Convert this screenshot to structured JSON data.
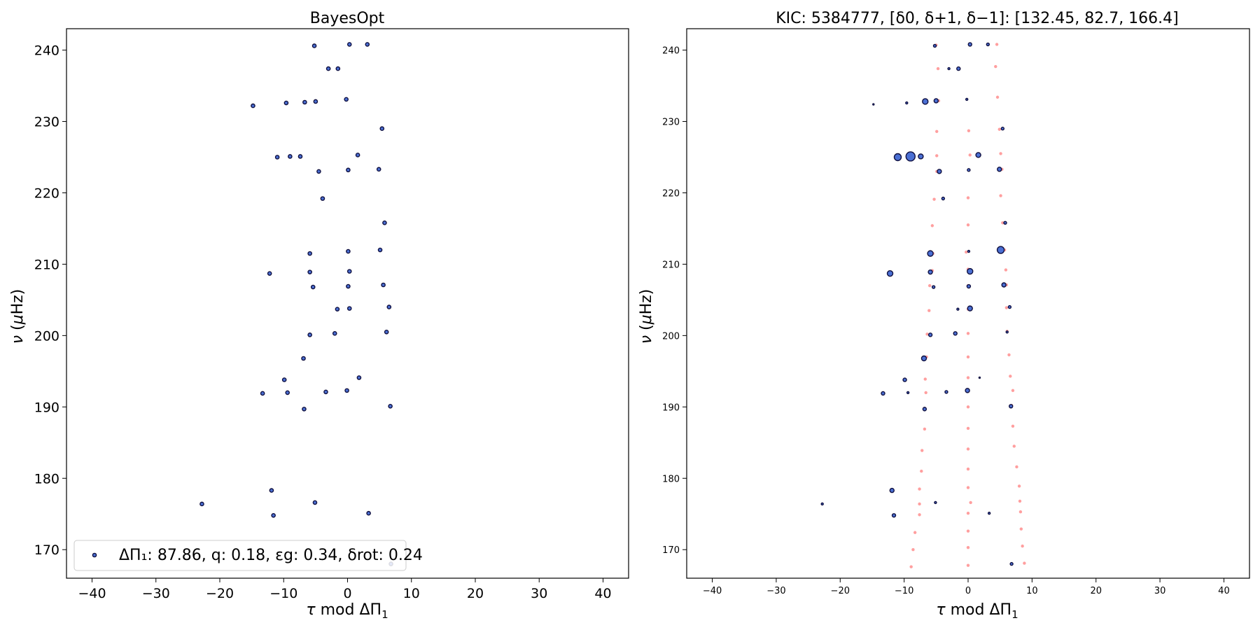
{
  "chart_data": [
    {
      "type": "scatter",
      "title": "BayesOpt",
      "xlabel": "τ mod ΔΠ₁",
      "ylabel": "ν (μHz)",
      "xlim": [
        -44,
        44
      ],
      "ylim": [
        166,
        243
      ],
      "xticks": [
        -40,
        -30,
        -20,
        -10,
        0,
        10,
        20,
        30,
        40
      ],
      "yticks": [
        170,
        180,
        190,
        200,
        210,
        220,
        230,
        240
      ],
      "grid": false,
      "legend": {
        "location": "lower-left",
        "entries": [
          {
            "marker": "circle",
            "text": "ΔΠ₁: 87.86, q: 0.18, εg: 0.34, δrot: 0.24"
          }
        ]
      },
      "series": [
        {
          "color": "#4a6fd3",
          "edge_color": "#101040",
          "points": [
            [
              -5.2,
              240.6
            ],
            [
              0.3,
              240.8
            ],
            [
              3.1,
              240.8
            ],
            [
              -3.0,
              237.4
            ],
            [
              -1.5,
              237.4
            ],
            [
              -14.8,
              232.2
            ],
            [
              -9.6,
              232.6
            ],
            [
              -6.7,
              232.7
            ],
            [
              -5.0,
              232.8
            ],
            [
              -0.2,
              233.1
            ],
            [
              5.4,
              229.0
            ],
            [
              -11.0,
              225.0
            ],
            [
              -9.0,
              225.1
            ],
            [
              -7.4,
              225.1
            ],
            [
              1.6,
              225.3
            ],
            [
              -4.5,
              223.0
            ],
            [
              0.1,
              223.2
            ],
            [
              4.9,
              223.3
            ],
            [
              -3.9,
              219.2
            ],
            [
              5.8,
              215.8
            ],
            [
              -5.9,
              211.5
            ],
            [
              0.1,
              211.8
            ],
            [
              5.1,
              212.0
            ],
            [
              -12.2,
              208.7
            ],
            [
              -5.9,
              208.9
            ],
            [
              0.3,
              209.0
            ],
            [
              -5.4,
              206.8
            ],
            [
              0.1,
              206.9
            ],
            [
              5.6,
              207.1
            ],
            [
              -1.6,
              203.7
            ],
            [
              0.3,
              203.8
            ],
            [
              6.5,
              204.0
            ],
            [
              -5.9,
              200.1
            ],
            [
              -2.0,
              200.3
            ],
            [
              6.1,
              200.5
            ],
            [
              -6.9,
              196.8
            ],
            [
              -9.9,
              193.8
            ],
            [
              1.8,
              194.1
            ],
            [
              -13.3,
              191.9
            ],
            [
              -9.4,
              192.0
            ],
            [
              -3.4,
              192.1
            ],
            [
              -0.1,
              192.3
            ],
            [
              -6.8,
              189.7
            ],
            [
              6.7,
              190.1
            ],
            [
              -11.9,
              178.3
            ],
            [
              -22.8,
              176.4
            ],
            [
              -5.1,
              176.6
            ],
            [
              -11.6,
              174.8
            ],
            [
              3.3,
              175.1
            ],
            [
              6.8,
              168.0
            ]
          ]
        }
      ]
    },
    {
      "type": "scatter",
      "title": "KIC: 5384777, [δ0, δ+1, δ−1]: [132.45, 82.7, 166.4]",
      "xlabel": "τ mod ΔΠ₁",
      "ylabel": "ν (μHz)",
      "xlim": [
        -44,
        44
      ],
      "ylim": [
        166,
        243
      ],
      "xticks": [
        -40,
        -30,
        -20,
        -10,
        0,
        10,
        20,
        30,
        40
      ],
      "yticks": [
        170,
        180,
        190,
        200,
        210,
        220,
        230,
        240
      ],
      "grid": false,
      "series": [
        {
          "color": "#4a6fd3",
          "edge_color": "#101040",
          "points": [
            [
              -5.2,
              240.6,
              2
            ],
            [
              0.3,
              240.8,
              2.5
            ],
            [
              3.1,
              240.8,
              2
            ],
            [
              -3.0,
              237.4,
              1.5
            ],
            [
              -1.5,
              237.4,
              2.5
            ],
            [
              -14.8,
              232.4,
              1
            ],
            [
              -9.6,
              232.6,
              1.5
            ],
            [
              -6.7,
              232.8,
              4
            ],
            [
              -5.0,
              232.9,
              3
            ],
            [
              -0.2,
              233.1,
              1.5
            ],
            [
              5.4,
              229.0,
              2
            ],
            [
              -11.0,
              225.0,
              5
            ],
            [
              -9.0,
              225.1,
              6.5
            ],
            [
              -7.4,
              225.1,
              3.5
            ],
            [
              1.6,
              225.3,
              3.5
            ],
            [
              -4.5,
              223.0,
              3
            ],
            [
              0.1,
              223.2,
              2
            ],
            [
              4.9,
              223.3,
              3
            ],
            [
              -3.9,
              219.2,
              2
            ],
            [
              5.8,
              215.8,
              2
            ],
            [
              -5.9,
              211.5,
              4
            ],
            [
              0.1,
              211.8,
              1.5
            ],
            [
              5.1,
              212.0,
              5
            ],
            [
              -12.2,
              208.7,
              4
            ],
            [
              -5.9,
              208.9,
              3
            ],
            [
              0.3,
              209.0,
              4
            ],
            [
              -5.4,
              206.8,
              2
            ],
            [
              0.1,
              206.9,
              2.5
            ],
            [
              5.6,
              207.1,
              3
            ],
            [
              -1.6,
              203.7,
              1.5
            ],
            [
              0.3,
              203.8,
              3.5
            ],
            [
              6.5,
              204.0,
              2
            ],
            [
              -5.9,
              200.1,
              2.5
            ],
            [
              -2.0,
              200.3,
              2.5
            ],
            [
              6.1,
              200.5,
              1.5
            ],
            [
              -6.9,
              196.8,
              3.5
            ],
            [
              -9.9,
              193.8,
              2.5
            ],
            [
              1.8,
              194.1,
              1
            ],
            [
              -13.3,
              191.9,
              2.5
            ],
            [
              -9.4,
              192.0,
              1.5
            ],
            [
              -3.4,
              192.1,
              2
            ],
            [
              -0.1,
              192.3,
              3
            ],
            [
              -6.8,
              189.7,
              2.5
            ],
            [
              6.7,
              190.1,
              2.5
            ],
            [
              -11.9,
              178.3,
              3
            ],
            [
              -22.8,
              176.4,
              1.5
            ],
            [
              -5.1,
              176.6,
              1.5
            ],
            [
              -11.6,
              174.8,
              2.5
            ],
            [
              3.3,
              175.1,
              1.5
            ],
            [
              6.8,
              168.0,
              2
            ]
          ]
        },
        {
          "color": "#ff9f9f",
          "points": [
            [
              -5.0,
              240.7
            ],
            [
              4.5,
              240.8
            ],
            [
              -4.7,
              237.4
            ],
            [
              4.3,
              237.7
            ],
            [
              -4.6,
              232.9
            ],
            [
              4.6,
              233.4
            ],
            [
              -4.9,
              228.6
            ],
            [
              0.1,
              228.7
            ],
            [
              4.9,
              228.9
            ],
            [
              -4.9,
              225.2
            ],
            [
              0.3,
              225.3
            ],
            [
              5.1,
              225.5
            ],
            [
              -4.9,
              223.0
            ],
            [
              5.3,
              223.3
            ],
            [
              -5.3,
              219.1
            ],
            [
              0.0,
              219.3
            ],
            [
              5.1,
              219.6
            ],
            [
              -5.6,
              215.4
            ],
            [
              0.0,
              215.5
            ],
            [
              5.4,
              215.8
            ],
            [
              -5.5,
              211.5
            ],
            [
              -0.3,
              211.7
            ],
            [
              5.7,
              212.0
            ],
            [
              -5.6,
              209.1
            ],
            [
              0.0,
              209.3
            ],
            [
              5.9,
              209.2
            ],
            [
              -6.0,
              207.0
            ],
            [
              0.0,
              207.0
            ],
            [
              6.0,
              207.1
            ],
            [
              -6.1,
              203.5
            ],
            [
              0.0,
              203.7
            ],
            [
              6.0,
              203.9
            ],
            [
              -6.4,
              200.2
            ],
            [
              0.0,
              200.3
            ],
            [
              6.1,
              200.6
            ],
            [
              -6.5,
              197.0
            ],
            [
              0.0,
              197.0
            ],
            [
              6.4,
              197.3
            ],
            [
              -6.7,
              193.9
            ],
            [
              0.0,
              194.1
            ],
            [
              6.6,
              194.3
            ],
            [
              -6.6,
              192.0
            ],
            [
              0.0,
              192.2
            ],
            [
              7.0,
              192.3
            ],
            [
              -6.8,
              189.8
            ],
            [
              0.0,
              190.0
            ],
            [
              6.8,
              190.2
            ],
            [
              -6.8,
              186.9
            ],
            [
              0.0,
              187.0
            ],
            [
              7.0,
              187.3
            ],
            [
              -7.2,
              183.9
            ],
            [
              0.0,
              184.1
            ],
            [
              7.2,
              184.5
            ],
            [
              -7.3,
              181.0
            ],
            [
              0.0,
              181.3
            ],
            [
              7.6,
              181.6
            ],
            [
              -7.6,
              178.5
            ],
            [
              0.0,
              178.7
            ],
            [
              8.0,
              178.9
            ],
            [
              -7.6,
              176.4
            ],
            [
              0.4,
              176.6
            ],
            [
              8.1,
              176.8
            ],
            [
              -7.6,
              174.9
            ],
            [
              0.0,
              175.1
            ],
            [
              8.2,
              175.3
            ],
            [
              -8.3,
              172.4
            ],
            [
              0.0,
              172.6
            ],
            [
              8.3,
              172.9
            ],
            [
              -8.6,
              170.0
            ],
            [
              0.0,
              170.3
            ],
            [
              8.5,
              170.5
            ],
            [
              -8.9,
              167.6
            ],
            [
              0.0,
              167.8
            ],
            [
              8.8,
              168.1
            ]
          ]
        }
      ]
    }
  ]
}
